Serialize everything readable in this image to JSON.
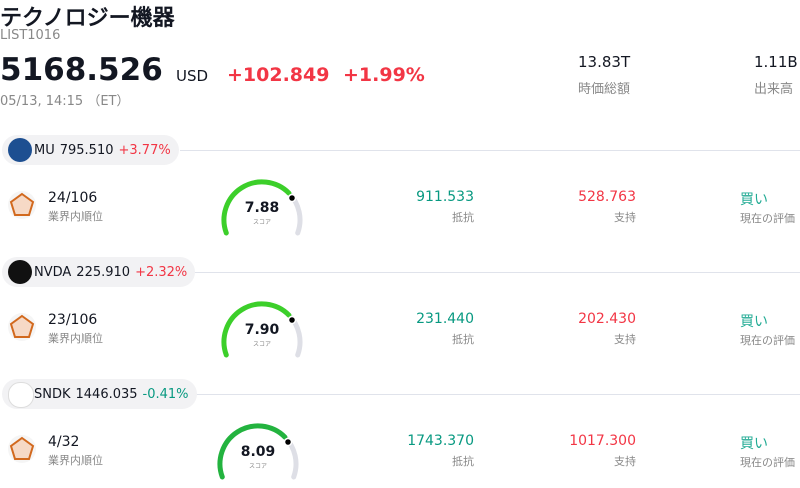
{
  "header": {
    "title": "テクノロジー機器",
    "code": "LIST1016",
    "price": "5168.526",
    "currency": "USD",
    "change": "+102.849",
    "change_pct": "+1.99%",
    "time": "05/13, 14:15 （ET）",
    "stats": [
      {
        "value": "13.83T",
        "label": "時価総額"
      },
      {
        "value": "1.11B",
        "label": "出来高"
      }
    ]
  },
  "items": [
    {
      "ticker": "MU",
      "price": "795.510",
      "change": "+3.77%",
      "rank": "24/106",
      "rank_label": "業界内順位",
      "score": "7.88",
      "score_label": "スコア",
      "resistance": "911.533",
      "resistance_label": "抵抗",
      "support": "528.763",
      "support_label": "支持",
      "rating": "買い",
      "rating_label": "現在の評価"
    },
    {
      "ticker": "NVDA",
      "price": "225.910",
      "change": "+2.32%",
      "rank": "23/106",
      "rank_label": "業界内順位",
      "score": "7.90",
      "score_label": "スコア",
      "resistance": "231.440",
      "resistance_label": "抵抗",
      "support": "202.430",
      "support_label": "支持",
      "rating": "買い",
      "rating_label": "現在の評価"
    },
    {
      "ticker": "SNDK",
      "price": "1446.035",
      "change": "-0.41%",
      "rank": "4/32",
      "rank_label": "業界内順位",
      "score": "8.09",
      "score_label": "スコア",
      "resistance": "1743.370",
      "resistance_label": "抵抗",
      "support": "1017.300",
      "support_label": "支持",
      "rating": "買い",
      "rating_label": "現在の評価"
    }
  ]
}
